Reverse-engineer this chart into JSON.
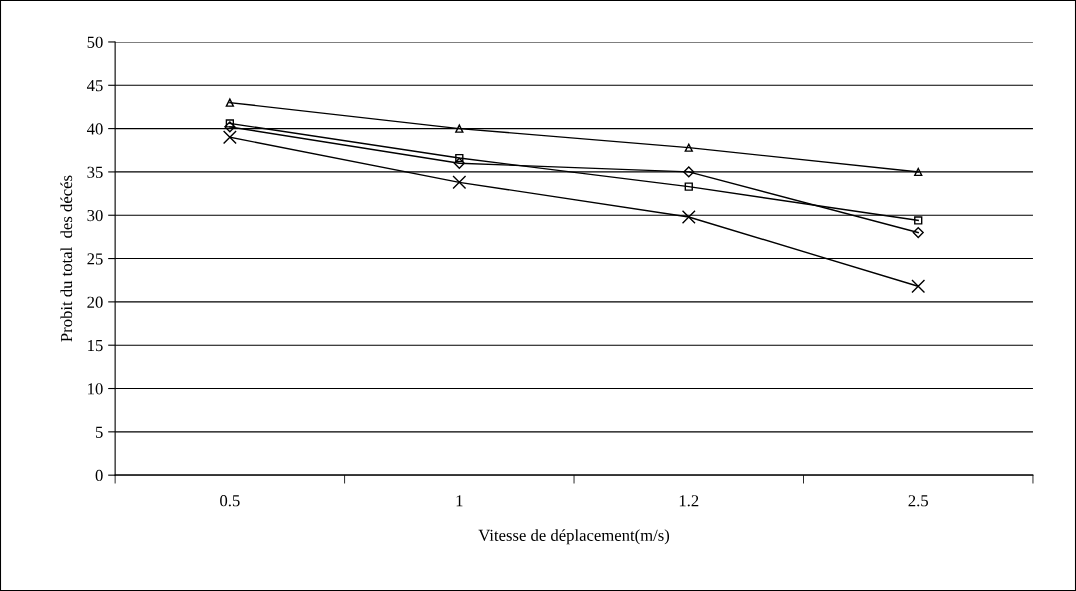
{
  "chart_data": {
    "type": "line",
    "xlabel": "Vitesse de déplacement(m/s)",
    "ylabel": "Probit du total  des décés",
    "categories": [
      "0.5",
      "1",
      "1.2",
      "2.5"
    ],
    "series": [
      {
        "color": "#000000",
        "marker": "diamond",
        "values": [
          40.2,
          36,
          35,
          28
        ]
      },
      {
        "color": "#000000",
        "marker": "square",
        "values": [
          40.6,
          36.6,
          33.3,
          29.4
        ]
      },
      {
        "color": "#000000",
        "marker": "triangle",
        "values": [
          43,
          40,
          37.8,
          35
        ]
      },
      {
        "color": "#000000",
        "marker": "cross",
        "values": [
          39,
          33.8,
          29.8,
          21.8
        ]
      }
    ],
    "ylim": [
      0,
      50
    ],
    "yticks": [
      0,
      5,
      10,
      15,
      20,
      25,
      30,
      35,
      40,
      45,
      50
    ],
    "grid": "y",
    "legend": false,
    "line_style": "solid"
  }
}
